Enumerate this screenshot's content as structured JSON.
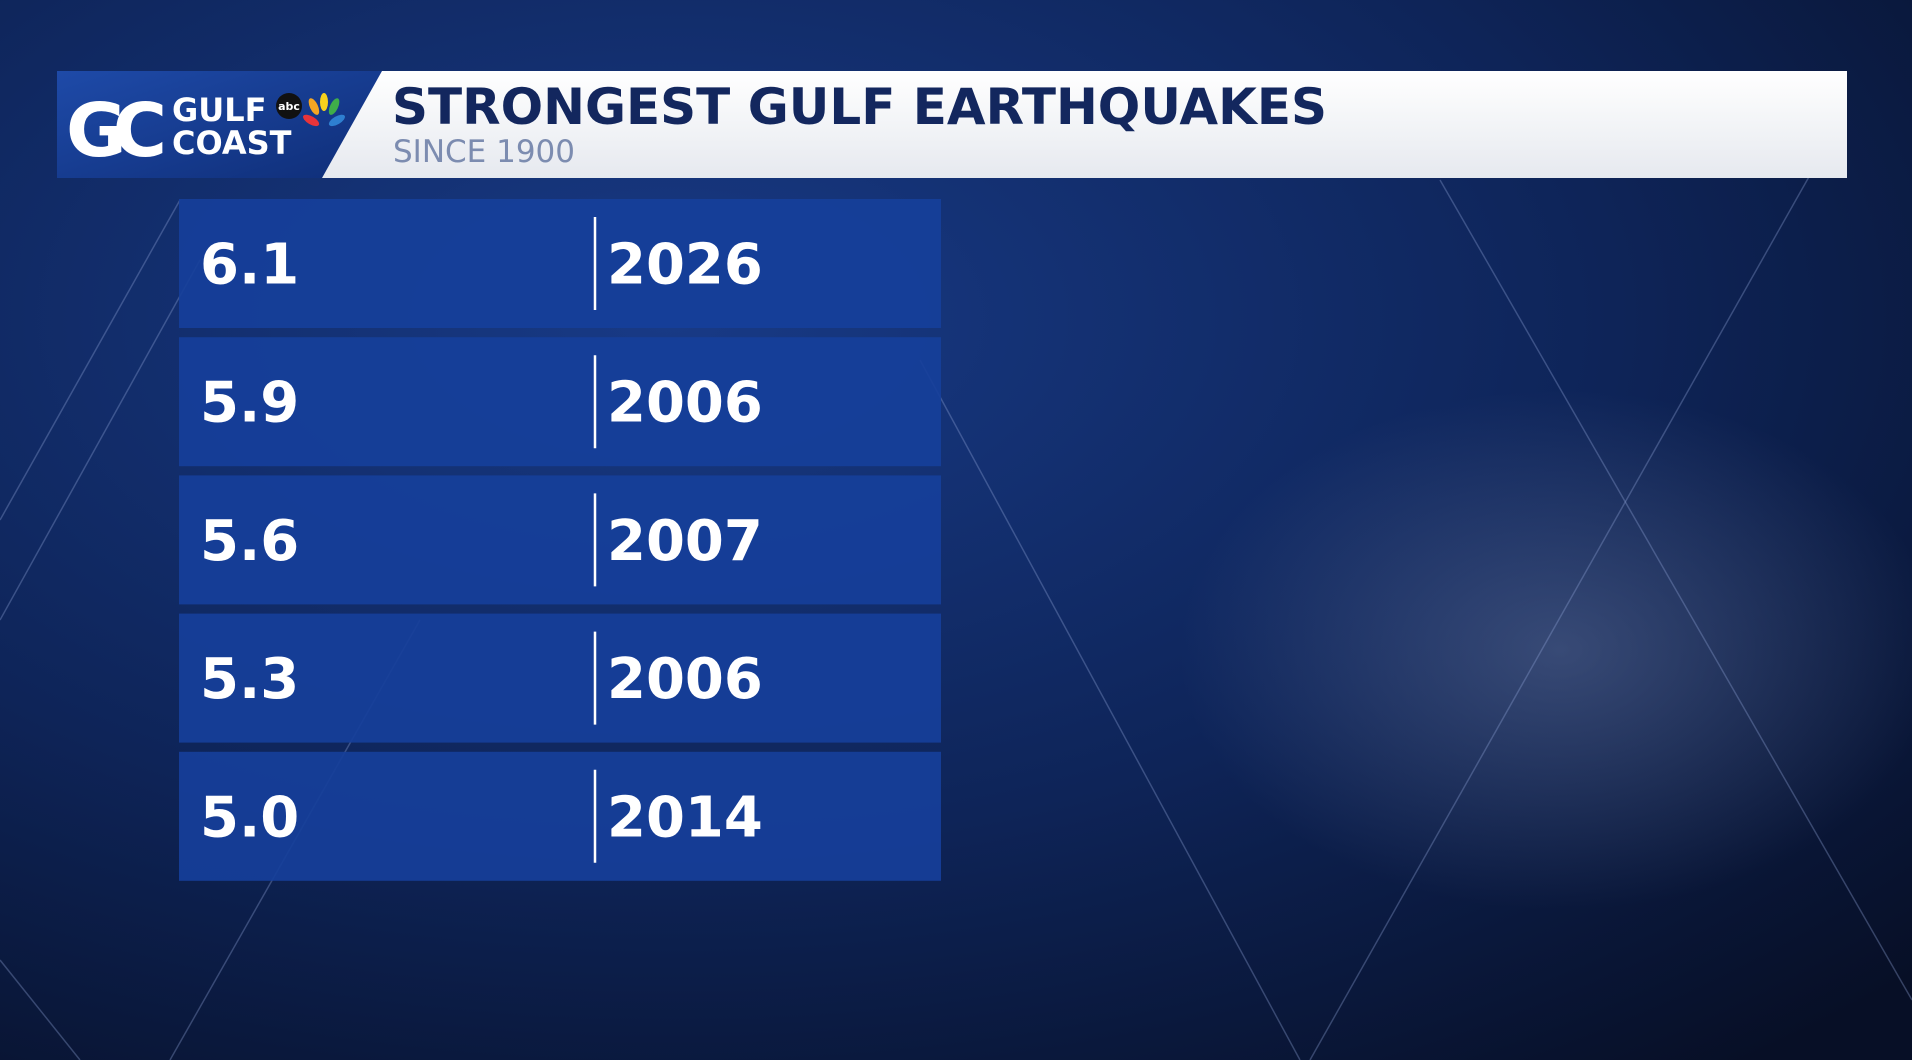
{
  "header": {
    "logo": {
      "monogram": "GC",
      "line1": "GULF",
      "line2": "COAST",
      "network": "abc"
    },
    "title": "STRONGEST GULF EARTHQUAKES",
    "subtitle": "SINCE 1900"
  },
  "table": {
    "rows": [
      [
        "6.1",
        "2026"
      ],
      [
        "5.9",
        "2006"
      ],
      [
        "5.6",
        "2007"
      ],
      [
        "5.3",
        "2006"
      ],
      [
        "5.0",
        "2014"
      ]
    ]
  }
}
